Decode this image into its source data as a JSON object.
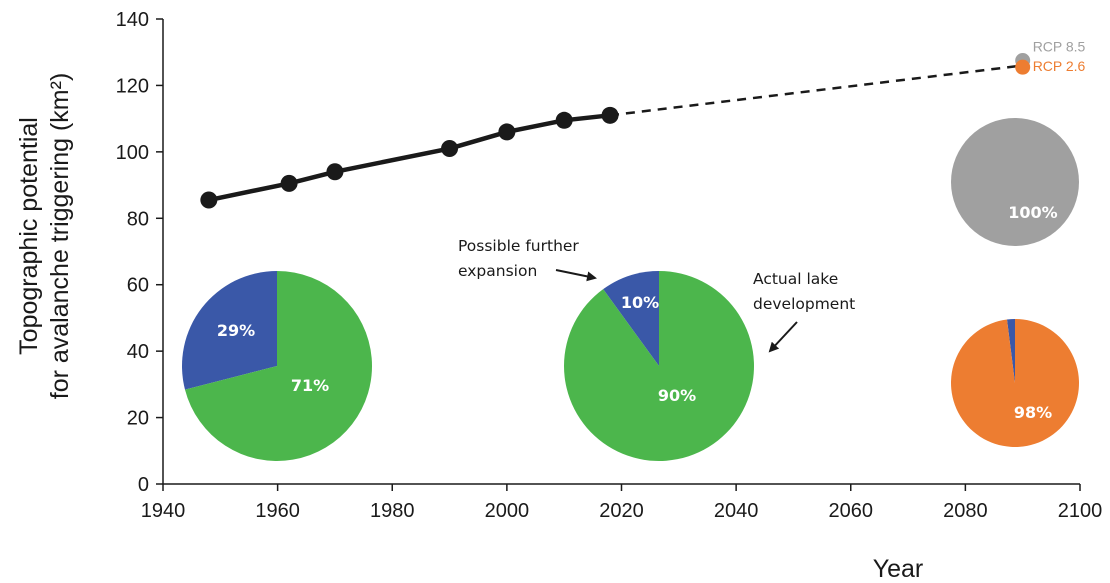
{
  "chart_data": {
    "type": "line",
    "xlabel": "Year",
    "ylabel_lines": [
      "Topographic potential",
      "for avalanche triggering (km²)"
    ],
    "xlim": [
      1940,
      2100
    ],
    "ylim": [
      0,
      140
    ],
    "x_ticks": [
      "1940",
      "1960",
      "1980",
      "2000",
      "2020",
      "2040",
      "2060",
      "2080",
      "2100"
    ],
    "y_ticks": [
      "0",
      "20",
      "40",
      "60",
      "80",
      "100",
      "120",
      "140"
    ],
    "grid": false,
    "observed": {
      "x": [
        1948,
        1962,
        1970,
        1990,
        2000,
        2010,
        2018
      ],
      "y": [
        85.5,
        90.5,
        94,
        101,
        106,
        109.5,
        111
      ]
    },
    "projection": {
      "x": [
        2018,
        2090
      ],
      "y": [
        111,
        126
      ]
    },
    "scenarios": [
      {
        "name": "RCP 8.5",
        "x": 2090,
        "y": 127.5,
        "color": "#a0a0a0"
      },
      {
        "name": "RCP 2.6",
        "x": 2090,
        "y": 125.5,
        "color": "#ed7d31"
      }
    ],
    "pies": [
      {
        "slices": [
          {
            "label": "29%",
            "value": 29,
            "color": "#3a58a8"
          },
          {
            "label": "71%",
            "value": 71,
            "color": "#4cb64c"
          }
        ]
      },
      {
        "slices": [
          {
            "label": "10%",
            "value": 10,
            "color": "#3a58a8"
          },
          {
            "label": "90%",
            "value": 90,
            "color": "#4cb64c"
          }
        ]
      },
      {
        "slices": [
          {
            "label": "100%",
            "value": 100,
            "color": "#a0a0a0"
          }
        ]
      },
      {
        "slices": [
          {
            "label": "2%",
            "value": 2,
            "color": "#3a58a8"
          },
          {
            "label": "98%",
            "value": 98,
            "color": "#ed7d31"
          }
        ]
      }
    ],
    "annotations": {
      "further_lines": [
        "Possible further",
        "expansion"
      ],
      "actual_lines": [
        "Actual lake",
        "development"
      ]
    }
  }
}
